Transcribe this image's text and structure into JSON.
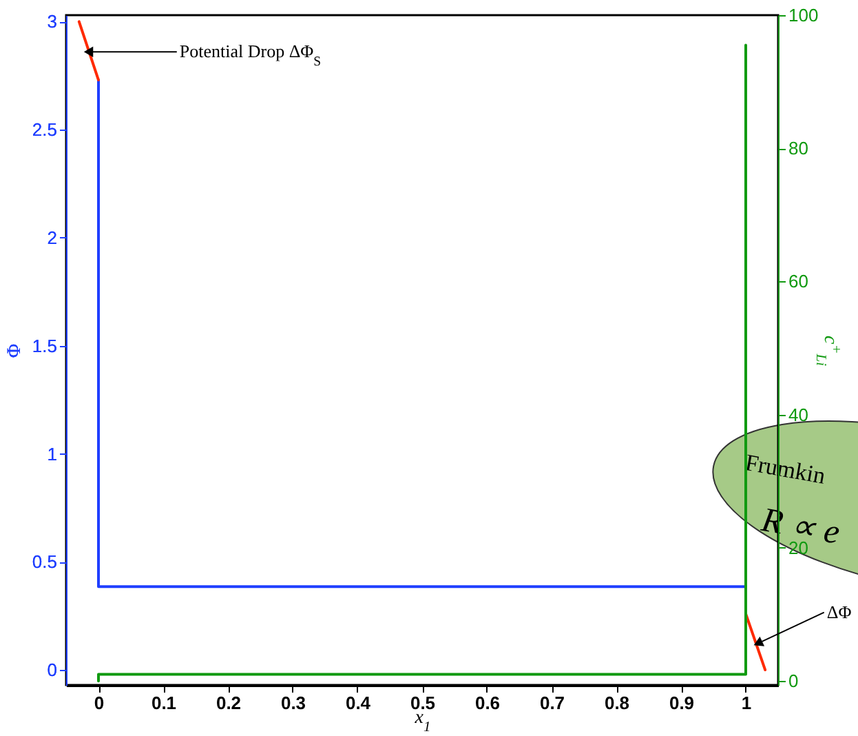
{
  "chart_data": {
    "type": "line",
    "xlabel": "x$_{1}$",
    "ylabel": "Φ",
    "y2label": "c$^{+}$$_{Li}$",
    "xlim": [
      -0.05,
      1.05
    ],
    "xticks": [
      0,
      0.1,
      0.2,
      0.3,
      0.4,
      0.5,
      0.6,
      0.7,
      0.8,
      0.9,
      1
    ],
    "ylim": [
      -0.07,
      3.03
    ],
    "yticks": [
      0,
      0.5,
      1,
      1.5,
      2,
      2.5,
      3
    ],
    "y2lim": [
      -0.6,
      100
    ],
    "y2ticks": [
      0,
      20,
      40,
      60,
      80,
      100
    ],
    "grid": false,
    "marker": "none",
    "line_style": "solid",
    "series": [
      {
        "color": "#1f3fff",
        "x": [
          0,
          0,
          1
        ],
        "values": [
          2.73,
          0.385,
          0.385
        ]
      },
      {
        "color": "#ff2a00",
        "x": [
          -0.03,
          0
        ],
        "values": [
          3.0,
          2.73
        ]
      },
      {
        "color": "#ff2a00",
        "x": [
          1,
          1.03
        ],
        "values": [
          0.26,
          0.0
        ]
      },
      {
        "color": "#119a11",
        "axis": "y2",
        "x": [
          0,
          0,
          1,
          1
        ],
        "values": [
          0,
          1,
          1,
          95.5
        ]
      }
    ],
    "annotations": [
      {
        "text": "Potential Drop ΔΦ$_{S}$",
        "x": -0.013,
        "y": 2.86
      },
      {
        "text": "ΔΦ",
        "x": 1.021,
        "y": 0.126
      },
      "Frumkin",
      "R ∝ e"
    ]
  }
}
